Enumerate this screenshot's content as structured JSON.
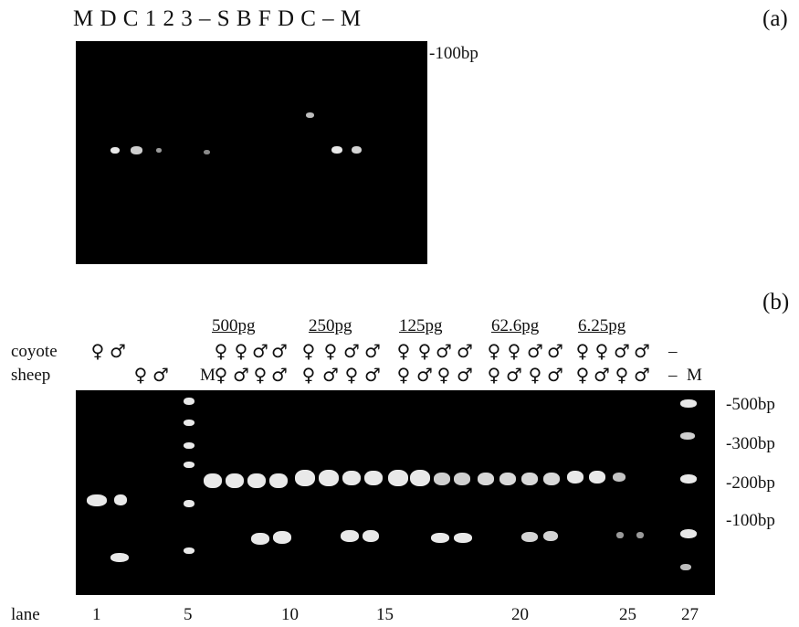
{
  "panel_a": {
    "lane_header": "M D C 1 2  3  –  S B  F D C – M",
    "label": "(a)",
    "size_marker": "-100bp"
  },
  "panel_b": {
    "label": "(b)",
    "concentrations": [
      "500pg",
      "250pg",
      "125pg",
      "62.6pg",
      "6.25pg"
    ],
    "row_labels": {
      "coyote": "coyote",
      "sheep": "sheep"
    },
    "lane_marker_M": "M",
    "dash": "–",
    "size_markers": [
      "-500bp",
      "-300bp",
      "-200bp",
      "-100bp"
    ],
    "lane_label": "lane",
    "lane_numbers": [
      "1",
      "5",
      "10",
      "15",
      "20",
      "25",
      "27"
    ]
  },
  "symbols": {
    "female": "♀",
    "male": "♂"
  }
}
